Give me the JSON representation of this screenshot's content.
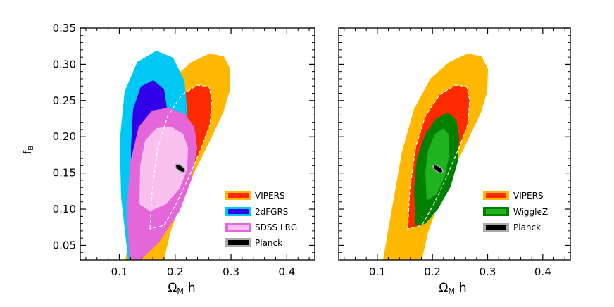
{
  "chart_data": [
    {
      "type": "contour",
      "panel": "left",
      "xlabel_main": "Ω",
      "xlabel_sub": "M",
      "xlabel_tail": "h",
      "ylabel_main": "f",
      "ylabel_sub": "B",
      "xlim": [
        0.03,
        0.45
      ],
      "ylim": [
        0.03,
        0.35
      ],
      "xticks": [
        0.1,
        0.2,
        0.3,
        0.4
      ],
      "xtick_labels": [
        "0.1",
        "0.2",
        "0.3",
        "0.4"
      ],
      "yticks": [
        0.05,
        0.1,
        0.15,
        0.2,
        0.25,
        0.3,
        0.35
      ],
      "ytick_labels": [
        "0.05",
        "0.10",
        "0.15",
        "0.20",
        "0.25",
        "0.30",
        "0.35"
      ],
      "series": [
        {
          "name": "VIPERS",
          "color_outer": "#ffb800",
          "color_inner": "#ff2a00",
          "dashed_outline": true,
          "outer_range": {
            "x": [
              0.12,
              0.31
            ],
            "y": [
              0.03,
              0.31
            ]
          },
          "inner_range": {
            "x": [
              0.15,
              0.27
            ],
            "y": [
              0.07,
              0.27
            ]
          }
        },
        {
          "name": "2dFGRS",
          "color_outer": "#00c8f5",
          "color_inner": "#3000e8",
          "outer_range": {
            "x": [
              0.11,
              0.23
            ],
            "y": [
              0.03,
              0.32
            ]
          },
          "inner_range": {
            "x": [
              0.13,
              0.2
            ],
            "y": [
              0.09,
              0.28
            ]
          }
        },
        {
          "name": "SDSS LRG",
          "color_outer": "#e466d8",
          "color_inner": "#f8bfef",
          "outer_range": {
            "x": [
              0.11,
              0.25
            ],
            "y": [
              0.03,
              0.23
            ]
          },
          "inner_range": {
            "x": [
              0.15,
              0.24
            ],
            "y": [
              0.09,
              0.2
            ]
          }
        },
        {
          "name": "Planck",
          "color_outer": "#aaaaaa",
          "color_inner": "#000000",
          "center": {
            "x": 0.212,
            "y": 0.158
          }
        }
      ],
      "legend": [
        "VIPERS",
        "2dFGRS",
        "SDSS LRG",
        "Planck"
      ],
      "legend_position": "bottom-right"
    },
    {
      "type": "contour",
      "panel": "right",
      "xlabel_main": "Ω",
      "xlabel_sub": "M",
      "xlabel_tail": "h",
      "xlim": [
        0.03,
        0.45
      ],
      "ylim": [
        0.03,
        0.35
      ],
      "xticks": [
        0.1,
        0.2,
        0.3,
        0.4
      ],
      "xtick_labels": [
        "0.1",
        "0.2",
        "0.3",
        "0.4"
      ],
      "series": [
        {
          "name": "VIPERS",
          "color_outer": "#ffb800",
          "color_inner": "#ff2a00",
          "dashed_outline": true,
          "outer_range": {
            "x": [
              0.12,
              0.31
            ],
            "y": [
              0.03,
              0.31
            ]
          },
          "inner_range": {
            "x": [
              0.15,
              0.27
            ],
            "y": [
              0.07,
              0.27
            ]
          }
        },
        {
          "name": "WiggleZ",
          "color_outer": "#008000",
          "color_inner": "#1fb31f",
          "outer_range": {
            "x": [
              0.16,
              0.26
            ],
            "y": [
              0.07,
              0.21
            ]
          },
          "inner_range": {
            "x": [
              0.18,
              0.24
            ],
            "y": [
              0.1,
              0.19
            ]
          }
        },
        {
          "name": "Planck",
          "color_outer": "#aaaaaa",
          "color_inner": "#000000",
          "center": {
            "x": 0.212,
            "y": 0.158
          }
        }
      ],
      "legend": [
        "VIPERS",
        "WiggleZ",
        "Planck"
      ],
      "legend_position": "bottom-right"
    }
  ]
}
